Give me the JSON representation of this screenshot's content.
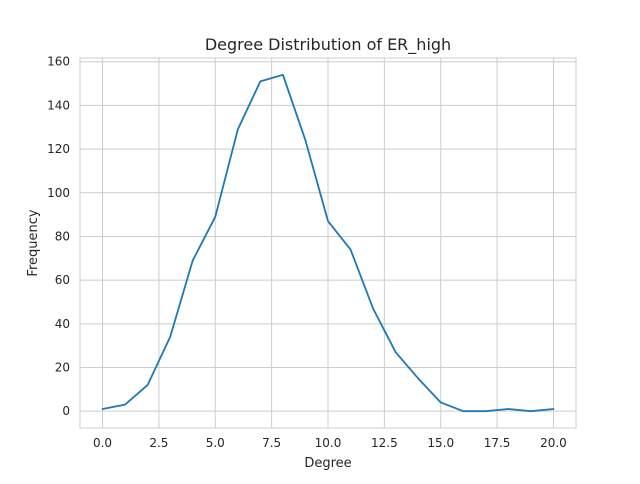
{
  "chart_data": {
    "type": "line",
    "title": "Degree Distribution of ER_high",
    "xlabel": "Degree",
    "ylabel": "Frequency",
    "xlim": [
      -1,
      21
    ],
    "ylim": [
      -7.7,
      161.7
    ],
    "xticks": [
      0.0,
      2.5,
      5.0,
      7.5,
      10.0,
      12.5,
      15.0,
      17.5,
      20.0
    ],
    "xtick_labels": [
      "0.0",
      "2.5",
      "5.0",
      "7.5",
      "10.0",
      "12.5",
      "15.0",
      "17.5",
      "20.0"
    ],
    "yticks": [
      0,
      20,
      40,
      60,
      80,
      100,
      120,
      140,
      160
    ],
    "ytick_labels": [
      "0",
      "20",
      "40",
      "60",
      "80",
      "100",
      "120",
      "140",
      "160"
    ],
    "grid": true,
    "series": [
      {
        "color": "#1f77b4",
        "x": [
          0,
          1,
          2,
          3,
          4,
          5,
          6,
          7,
          8,
          9,
          10,
          11,
          12,
          13,
          14,
          15,
          16,
          17,
          18,
          19,
          20
        ],
        "y": [
          1,
          3,
          12,
          34,
          69,
          89,
          129,
          151,
          154,
          124,
          87,
          74,
          47,
          27,
          15,
          4,
          0,
          0,
          1,
          0,
          1
        ]
      }
    ]
  }
}
